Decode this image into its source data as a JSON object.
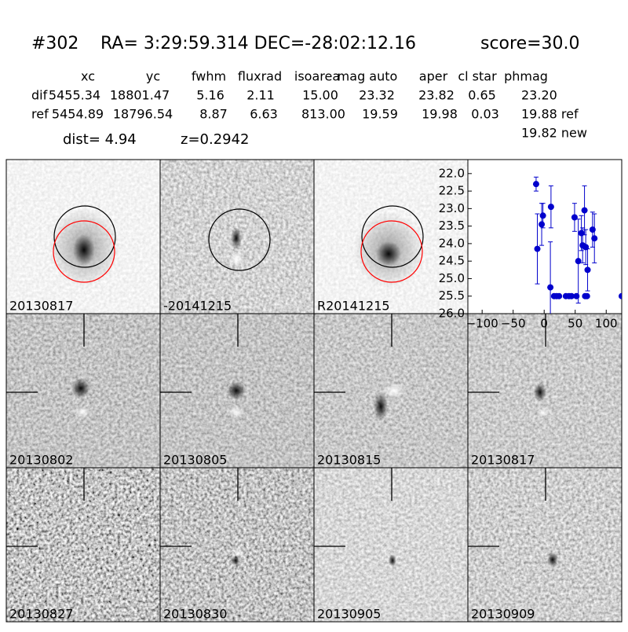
{
  "header": {
    "id": "#302",
    "coords": "RA= 3:29:59.314 DEC=-28:02:12.16",
    "score": "score=30.0"
  },
  "table": {
    "columns": [
      "xc",
      "yc",
      "fwhm",
      "fluxrad",
      "isoarea",
      "mag auto",
      "aper",
      "cl star",
      "phmag"
    ],
    "rows": [
      {
        "label": "dif",
        "cells": [
          "5455.34",
          "18801.47",
          "5.16",
          "2.11",
          "15.00",
          "23.32",
          "23.82",
          "0.65",
          "23.20"
        ]
      },
      {
        "label": "ref",
        "cells": [
          "5454.89",
          "18796.54",
          "8.87",
          "6.63",
          "813.00",
          "19.59",
          "19.98",
          "0.03",
          "19.88 ref"
        ]
      }
    ],
    "extra": "19.82 new"
  },
  "dist": "dist=  4.94",
  "z": "z=0.2942",
  "stamps": [
    {
      "label": "20130817"
    },
    {
      "label": "-20141215"
    },
    {
      "label": "R20141215"
    },
    {
      "label": "20130802"
    },
    {
      "label": "20130805"
    },
    {
      "label": "20130815"
    },
    {
      "label": "20130817",
      "color": "#ff0000"
    },
    {
      "label": "20130827"
    },
    {
      "label": "20130830"
    },
    {
      "label": "20130905"
    },
    {
      "label": "20130909"
    }
  ],
  "light_curve": {
    "type": "scatter",
    "color": "#0000cc",
    "x": [
      -13,
      -11,
      -4,
      -2,
      10,
      11,
      16,
      20,
      24,
      35,
      40,
      44,
      49,
      52,
      55,
      60,
      62,
      65,
      66,
      67,
      69,
      70,
      78,
      81,
      125
    ],
    "values": [
      22.3,
      24.15,
      23.45,
      23.2,
      25.25,
      22.95,
      25.5,
      25.5,
      25.5,
      25.5,
      25.5,
      25.5,
      23.25,
      25.5,
      24.5,
      23.7,
      24.05,
      23.05,
      25.5,
      24.1,
      25.5,
      24.75,
      23.6,
      23.85,
      25.5
    ],
    "errors": [
      0.2,
      1.0,
      0.6,
      0.35,
      1.3,
      0.6,
      0,
      0,
      0,
      0,
      0,
      0,
      0.4,
      0,
      1.2,
      0.5,
      0.5,
      0.7,
      0,
      0.5,
      0,
      0.6,
      0.5,
      0.7,
      0
    ],
    "xlim": [
      -123,
      125
    ],
    "ylim": [
      21.6,
      26.0
    ],
    "y_inverted": true,
    "xticks": [
      {
        "value": -100,
        "label": "−100"
      },
      {
        "value": -50,
        "label": "−50"
      },
      0,
      50,
      100
    ],
    "yticks": [
      {
        "value": 22,
        "label": "22.0"
      },
      {
        "value": 22.5,
        "label": "22.5"
      },
      {
        "value": 23,
        "label": "23.0"
      },
      {
        "value": 23.5,
        "label": "23.5"
      },
      {
        "value": 24,
        "label": "24.0"
      },
      {
        "value": 24.5,
        "label": "24.5"
      },
      {
        "value": 25,
        "label": "25.0"
      },
      {
        "value": 25.5,
        "label": "25.5"
      },
      {
        "value": 26,
        "label": "26.0"
      }
    ]
  }
}
